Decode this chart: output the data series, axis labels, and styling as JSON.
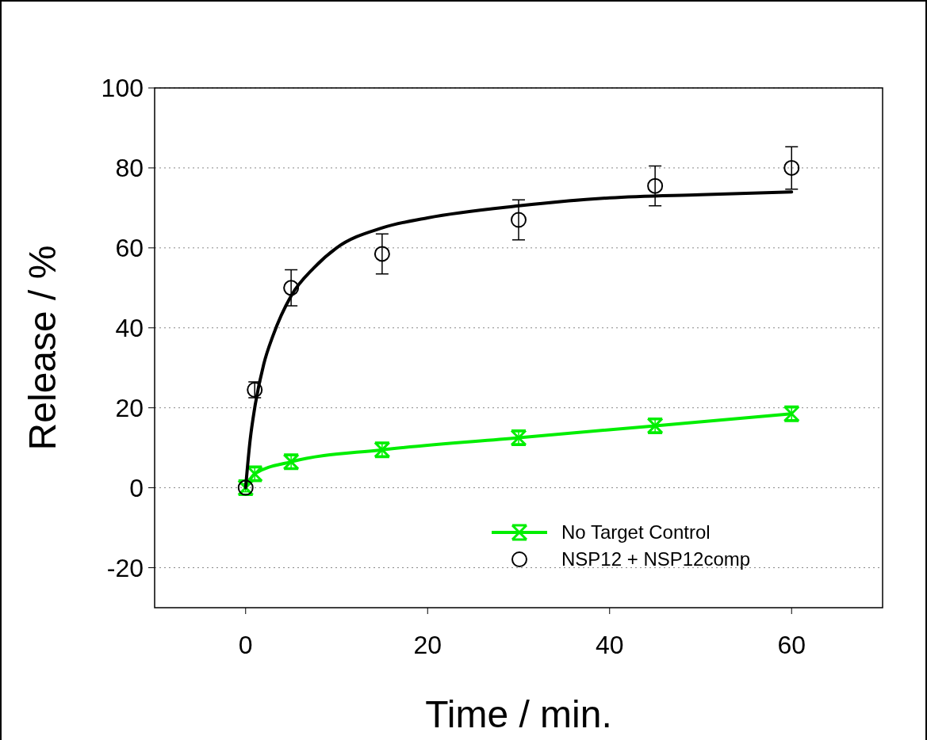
{
  "chart_data": {
    "type": "scatter",
    "xlabel": "Time / min.",
    "ylabel": "Release / %",
    "xlim": [
      -10,
      70
    ],
    "ylim": [
      -30,
      100
    ],
    "xticks": [
      0,
      20,
      40,
      60
    ],
    "yticks": [
      -20,
      0,
      20,
      40,
      60,
      80,
      100
    ],
    "grid": "y",
    "legend": "bottom right",
    "series": [
      {
        "name": "No Target Control",
        "type": "line",
        "color": "#00ee00",
        "marker": "cross",
        "x": [
          0,
          1,
          5,
          15,
          30,
          45,
          60
        ],
        "values": [
          0,
          3.5,
          6.5,
          9.5,
          12.5,
          15.5,
          18.5
        ],
        "errors": [
          1,
          1.5,
          1.5,
          1.5,
          1.5,
          1.5,
          1.5
        ]
      },
      {
        "name": "NSP12 + NSP12comp",
        "type": "scatter",
        "color": "#000000",
        "marker": "circle",
        "x": [
          0,
          1,
          5,
          15,
          30,
          45,
          60
        ],
        "values": [
          0,
          24.5,
          50,
          58.5,
          67,
          75.5,
          80
        ],
        "errors": [
          null,
          2,
          4.5,
          5,
          5,
          5,
          5.3
        ]
      },
      {
        "type": "line",
        "color": "#000000",
        "marker": "none",
        "x": [
          0,
          0.5,
          1,
          2,
          3,
          5,
          7.5,
          10,
          15,
          20,
          30,
          40,
          50,
          60
        ],
        "values": [
          0,
          12,
          20,
          31,
          38,
          48,
          55,
          60,
          65,
          67.5,
          70.5,
          72.5,
          73.3,
          74
        ]
      }
    ]
  }
}
